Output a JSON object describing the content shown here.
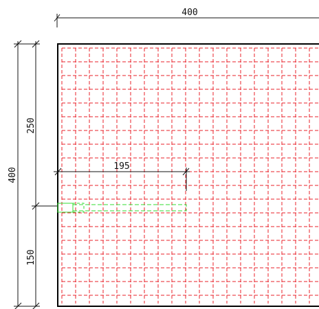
{
  "dimensions": {
    "overall_width": "400",
    "overall_height": "400",
    "upper_segment": "250",
    "lower_segment": "150",
    "offset": "195"
  },
  "colors": {
    "outline": "#000000",
    "grid": "#e8202a",
    "dimension": "#111111",
    "highlight": "#33dd33"
  },
  "grid": {
    "columns": 19,
    "rows": 19,
    "line_style": "dashed"
  }
}
